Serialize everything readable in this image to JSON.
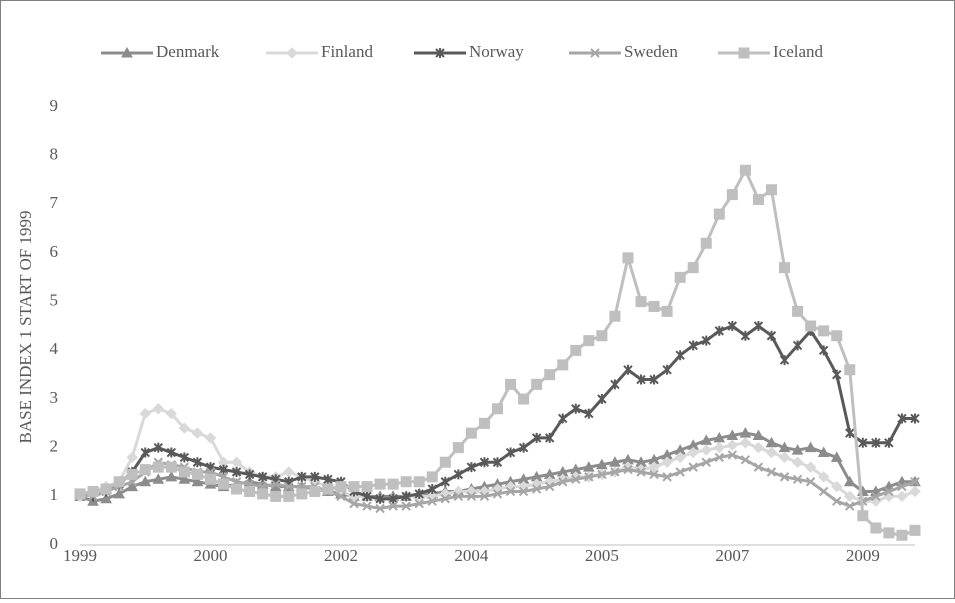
{
  "chart_data": {
    "type": "line",
    "y_label": "BASE INDEX 1 START OF 1999",
    "categories": [
      "1999",
      null,
      null,
      null,
      null,
      null,
      null,
      null,
      null,
      null,
      "2000",
      null,
      null,
      null,
      null,
      null,
      null,
      null,
      null,
      null,
      "2002",
      null,
      null,
      null,
      null,
      null,
      null,
      null,
      null,
      null,
      "2004",
      null,
      null,
      null,
      null,
      null,
      null,
      null,
      null,
      null,
      "2005",
      null,
      null,
      null,
      null,
      null,
      null,
      null,
      null,
      null,
      "2007",
      null,
      null,
      null,
      null,
      null,
      null,
      null,
      null,
      null,
      "2009",
      null,
      null,
      null,
      null
    ],
    "ylim": [
      0,
      9
    ],
    "yticks": [
      0,
      1,
      2,
      3,
      4,
      5,
      6,
      7,
      8,
      9
    ],
    "grid": false,
    "legend": "top",
    "series": [
      {
        "name": "Denmark",
        "color": "#8c8c8c",
        "marker": "triangle",
        "values": [
          1.0,
          0.9,
          0.95,
          1.05,
          1.2,
          1.3,
          1.35,
          1.4,
          1.35,
          1.3,
          1.25,
          1.2,
          1.25,
          1.3,
          1.25,
          1.2,
          1.2,
          1.2,
          1.15,
          1.1,
          1.05,
          1.0,
          1.0,
          1.0,
          1.0,
          1.0,
          1.05,
          1.05,
          1.1,
          1.1,
          1.15,
          1.2,
          1.25,
          1.3,
          1.35,
          1.4,
          1.45,
          1.5,
          1.55,
          1.6,
          1.65,
          1.7,
          1.75,
          1.7,
          1.75,
          1.85,
          1.95,
          2.05,
          2.15,
          2.2,
          2.25,
          2.3,
          2.25,
          2.1,
          2.0,
          1.95,
          2.0,
          1.9,
          1.8,
          1.3,
          1.1,
          1.1,
          1.2,
          1.3,
          1.3
        ]
      },
      {
        "name": "Finland",
        "color": "#d9d9d9",
        "marker": "diamond",
        "values": [
          1.0,
          1.1,
          1.2,
          1.3,
          1.8,
          2.7,
          2.8,
          2.7,
          2.4,
          2.3,
          2.2,
          1.7,
          1.7,
          1.5,
          1.4,
          1.4,
          1.5,
          1.4,
          1.3,
          1.2,
          1.1,
          1.0,
          1.0,
          0.95,
          0.95,
          1.0,
          1.0,
          1.0,
          1.05,
          1.1,
          1.1,
          1.1,
          1.15,
          1.2,
          1.2,
          1.25,
          1.3,
          1.35,
          1.4,
          1.4,
          1.45,
          1.5,
          1.6,
          1.55,
          1.6,
          1.7,
          1.8,
          1.9,
          1.95,
          2.0,
          2.05,
          2.1,
          2.0,
          1.9,
          1.8,
          1.7,
          1.6,
          1.4,
          1.2,
          1.0,
          0.9,
          0.9,
          1.0,
          1.0,
          1.1
        ]
      },
      {
        "name": "Norway",
        "color": "#595959",
        "marker": "asterisk",
        "values": [
          1.05,
          1.0,
          1.1,
          1.25,
          1.5,
          1.9,
          2.0,
          1.9,
          1.8,
          1.7,
          1.6,
          1.55,
          1.5,
          1.45,
          1.4,
          1.35,
          1.3,
          1.4,
          1.4,
          1.35,
          1.3,
          1.1,
          1.0,
          0.95,
          0.95,
          1.0,
          1.05,
          1.15,
          1.3,
          1.45,
          1.6,
          1.7,
          1.7,
          1.9,
          2.0,
          2.2,
          2.2,
          2.6,
          2.8,
          2.7,
          3.0,
          3.3,
          3.6,
          3.4,
          3.4,
          3.6,
          3.9,
          4.1,
          4.2,
          4.4,
          4.5,
          4.3,
          4.5,
          4.3,
          3.8,
          4.1,
          4.4,
          4.0,
          3.5,
          2.3,
          2.1,
          2.1,
          2.1,
          2.6,
          2.6
        ]
      },
      {
        "name": "Sweden",
        "color": "#a6a6a6",
        "marker": "x",
        "values": [
          1.05,
          1.0,
          1.1,
          1.2,
          1.3,
          1.5,
          1.7,
          1.65,
          1.6,
          1.5,
          1.5,
          1.4,
          1.3,
          1.25,
          1.2,
          1.25,
          1.2,
          1.2,
          1.2,
          1.1,
          1.0,
          0.85,
          0.8,
          0.75,
          0.8,
          0.8,
          0.85,
          0.9,
          0.95,
          1.0,
          1.0,
          1.0,
          1.05,
          1.1,
          1.1,
          1.15,
          1.2,
          1.3,
          1.35,
          1.4,
          1.45,
          1.5,
          1.55,
          1.5,
          1.45,
          1.4,
          1.5,
          1.6,
          1.7,
          1.8,
          1.85,
          1.75,
          1.6,
          1.5,
          1.4,
          1.35,
          1.3,
          1.1,
          0.9,
          0.8,
          0.9,
          1.0,
          1.1,
          1.2,
          1.3
        ]
      },
      {
        "name": "Iceland",
        "color": "#bfbfbf",
        "marker": "square",
        "values": [
          1.05,
          1.1,
          1.15,
          1.3,
          1.45,
          1.55,
          1.6,
          1.6,
          1.5,
          1.45,
          1.35,
          1.25,
          1.15,
          1.1,
          1.05,
          1.0,
          1.0,
          1.05,
          1.1,
          1.15,
          1.2,
          1.2,
          1.2,
          1.25,
          1.25,
          1.3,
          1.3,
          1.4,
          1.7,
          2.0,
          2.3,
          2.5,
          2.8,
          3.3,
          3.0,
          3.3,
          3.5,
          3.7,
          4.0,
          4.2,
          4.3,
          4.7,
          5.9,
          5.0,
          4.9,
          4.8,
          5.5,
          5.7,
          6.2,
          6.8,
          7.2,
          7.7,
          7.1,
          7.3,
          5.7,
          4.8,
          4.5,
          4.4,
          4.3,
          3.6,
          0.6,
          0.35,
          0.25,
          0.2,
          0.3
        ]
      }
    ]
  }
}
